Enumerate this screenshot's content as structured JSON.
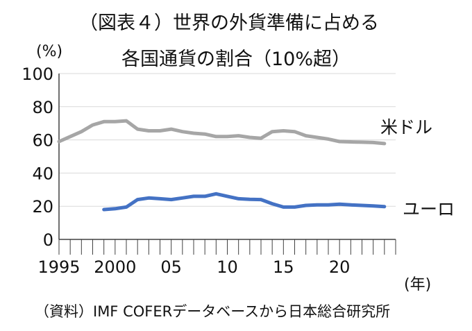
{
  "title_line1": "（図表４）世界の外貨準備に占める",
  "title_line2": "各国通貨の割合（10%超）",
  "y_unit": "(%)",
  "x_unit": "(年)",
  "source": "（資料）IMF COFERデータベースから日本総合研究所",
  "chart_data": {
    "type": "line",
    "title": "（図表４）世界の外貨準備に占める 各国通貨の割合（10%超）",
    "ylabel": "(%)",
    "xlabel": "(年)",
    "ylim": [
      0,
      100
    ],
    "xlim": [
      1995,
      2025
    ],
    "grid": true,
    "yticks": [
      "0",
      "20",
      "40",
      "60",
      "80",
      "100"
    ],
    "xticks": [
      {
        "x": 1995,
        "label": "1995"
      },
      {
        "x": 2000,
        "label": "2000"
      },
      {
        "x": 2005,
        "label": "05"
      },
      {
        "x": 2010,
        "label": "10"
      },
      {
        "x": 2015,
        "label": "15"
      },
      {
        "x": 2020,
        "label": "20"
      }
    ],
    "x": [
      1995,
      1996,
      1997,
      1998,
      1999,
      2000,
      2001,
      2002,
      2003,
      2004,
      2005,
      2006,
      2007,
      2008,
      2009,
      2010,
      2011,
      2012,
      2013,
      2014,
      2015,
      2016,
      2017,
      2018,
      2019,
      2020,
      2021,
      2022,
      2023,
      2024
    ],
    "series": [
      {
        "name": "米ドル",
        "color": "#a6a6a6",
        "values": [
          59,
          62,
          65,
          69,
          71,
          71,
          71.5,
          66.5,
          65.5,
          65.5,
          66.5,
          65,
          64,
          63.5,
          62,
          62,
          62.5,
          61.5,
          61,
          65,
          65.5,
          65,
          62.5,
          61.5,
          60.5,
          59,
          58.8,
          58.6,
          58.4,
          57.8
        ]
      },
      {
        "name": "ユーロ",
        "color": "#4472c4",
        "values": [
          null,
          null,
          null,
          null,
          18,
          18.5,
          19.5,
          24,
          25,
          24.5,
          24,
          25,
          26,
          26,
          27.5,
          26,
          24.5,
          24.2,
          24,
          21.5,
          19.5,
          19.5,
          20.5,
          20.8,
          20.8,
          21.2,
          20.8,
          20.5,
          20.2,
          19.8
        ]
      }
    ]
  }
}
